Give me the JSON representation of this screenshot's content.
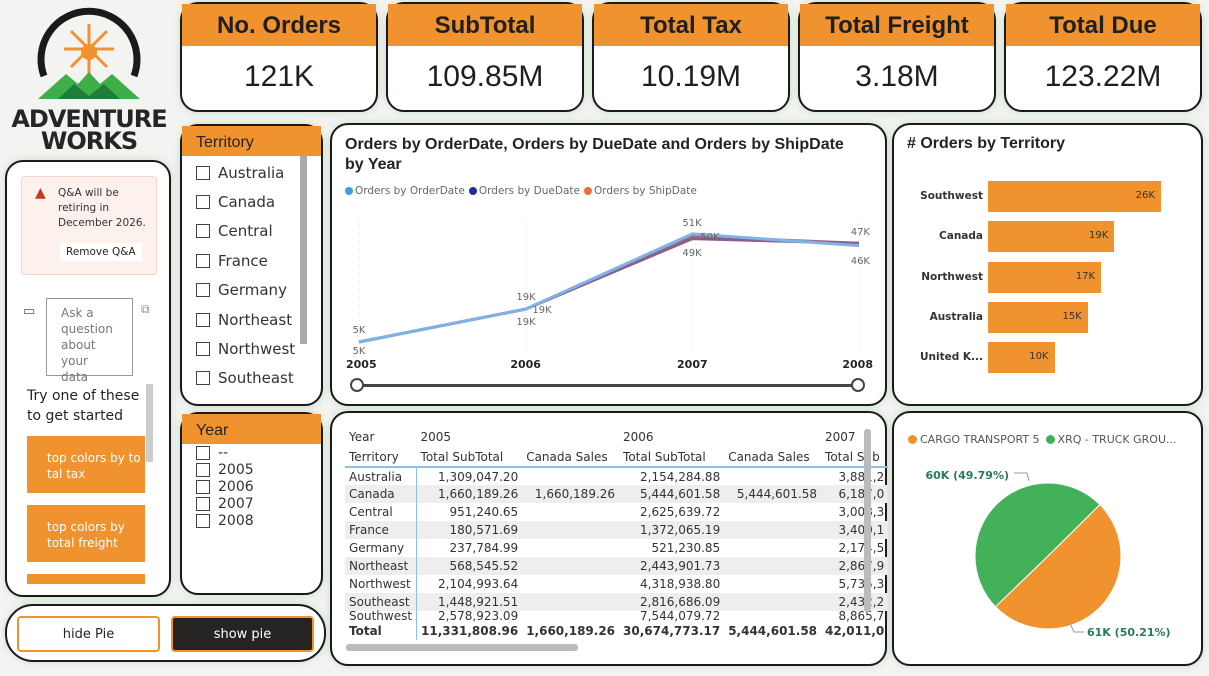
{
  "logo": {
    "line1": "ADVENTURE",
    "line2": "WORKS"
  },
  "kpis": [
    {
      "label": "No. Orders",
      "value": "121K"
    },
    {
      "label": "SubTotal",
      "value": "109.85M"
    },
    {
      "label": "Total Tax",
      "value": "10.19M"
    },
    {
      "label": "Total Freight",
      "value": "3.18M"
    },
    {
      "label": "Total Due",
      "value": "123.22M"
    }
  ],
  "qa": {
    "warning": "Q&A will be retiring in December 2026.",
    "remove": "Remove Q&A",
    "placeholder": "Ask a question about your data",
    "try": "Try one of these to get started",
    "suggestions": [
      "top colors by total tax",
      "top colors by total freight"
    ]
  },
  "buttons": {
    "hide": "hide Pie",
    "show": "show pie"
  },
  "territory_slicer": {
    "title": "Territory",
    "items": [
      "Australia",
      "Canada",
      "Central",
      "France",
      "Germany",
      "Northeast",
      "Northwest",
      "Southeast"
    ]
  },
  "year_slicer": {
    "title": "Year",
    "items": [
      "--",
      "2005",
      "2006",
      "2007",
      "2008"
    ]
  },
  "colors": {
    "accent": "#f0922d",
    "green": "#43b15a",
    "orderdate": "#3d9be9",
    "duedate": "#1c2e9c",
    "shipdate": "#e8733a"
  },
  "line_chart": {
    "title": "Orders by OrderDate, Orders by DueDate and Orders by ShipDate by Year",
    "chart_data": {
      "type": "line",
      "x": [
        "2005",
        "2006",
        "2007",
        "2008"
      ],
      "series": [
        {
          "name": "Orders by OrderDate",
          "values": [
            5,
            19,
            51,
            46
          ]
        },
        {
          "name": "Orders by DueDate",
          "values": [
            5,
            19,
            49,
            47
          ]
        },
        {
          "name": "Orders by ShipDate",
          "values": [
            5,
            19,
            50,
            47
          ]
        }
      ],
      "labels": [
        [
          "5K",
          "5K"
        ],
        [
          "19K",
          "19K",
          "19K"
        ],
        [
          "51K",
          "50K",
          "49K"
        ],
        [
          "47K",
          "46K"
        ]
      ],
      "legend": "top-left",
      "unit": "K"
    }
  },
  "bar_chart": {
    "title": "# Orders by Territory",
    "chart_data": {
      "type": "bar",
      "categories": [
        "Southwest",
        "Canada",
        "Northwest",
        "Australia",
        "United K..."
      ],
      "values": [
        26,
        19,
        17,
        15,
        10
      ],
      "labels": [
        "26K",
        "19K",
        "17K",
        "15K",
        "10K"
      ],
      "xlim": [
        0,
        30
      ]
    }
  },
  "pie_chart": {
    "chart_data": {
      "type": "pie",
      "slices": [
        {
          "name": "CARGO TRANSPORT 5",
          "value": 61,
          "percent": 50.21,
          "label": "61K (50.21%)",
          "color": "#f0922d"
        },
        {
          "name": "XRQ - TRUCK GROU...",
          "value": 60,
          "percent": 49.79,
          "label": "60K (49.79%)",
          "color": "#43b15a"
        }
      ],
      "legend": "top"
    }
  },
  "table": {
    "header1": [
      "Year",
      "2005",
      "",
      "2006",
      "",
      "2007"
    ],
    "header2": [
      "Territory",
      "Total SubTotal",
      "Canada Sales",
      "Total SubTotal",
      "Canada Sales",
      "Total Sub"
    ],
    "rows": [
      [
        "Australia",
        "1,309,047.20",
        "",
        "2,154,284.88",
        "",
        "3,881,2"
      ],
      [
        "Canada",
        "1,660,189.26",
        "1,660,189.26",
        "5,444,601.58",
        "5,444,601.58",
        "6,187,0"
      ],
      [
        "Central",
        "951,240.65",
        "",
        "2,625,639.72",
        "",
        "3,008,3"
      ],
      [
        "France",
        "180,571.69",
        "",
        "1,372,065.19",
        "",
        "3,400,1"
      ],
      [
        "Germany",
        "237,784.99",
        "",
        "521,230.85",
        "",
        "2,174,5"
      ],
      [
        "Northeast",
        "568,545.52",
        "",
        "2,443,901.73",
        "",
        "2,867,9"
      ],
      [
        "Northwest",
        "2,104,993.64",
        "",
        "4,318,938.80",
        "",
        "5,735,3"
      ],
      [
        "Southeast",
        "1,448,921.51",
        "",
        "2,816,686.09",
        "",
        "2,432,2"
      ],
      [
        "Southwest",
        "2,578,923.09",
        "",
        "7,544,079.72",
        "",
        "8,865,7"
      ]
    ],
    "total": [
      "Total",
      "11,331,808.96",
      "1,660,189.26",
      "30,674,773.17",
      "5,444,601.58",
      "42,011,0"
    ]
  }
}
